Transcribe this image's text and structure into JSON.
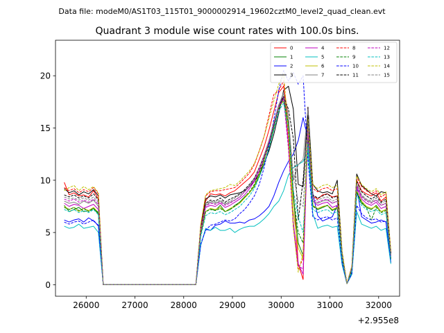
{
  "chart_data": {
    "type": "line",
    "suptitle": "Data file: modeM0/AS1T03_115T01_9000002914_19602cztM0_level2_quad_clean.evt",
    "title": "Quadrant 3 module wise count rates with 100.0s bins.",
    "xlabel": "",
    "ylabel": "",
    "x_offset_label": "+2.955e8",
    "xlim": [
      25370,
      32430
    ],
    "ylim": [
      -1.1,
      23.4
    ],
    "xticks": [
      26000,
      27000,
      28000,
      29000,
      30000,
      31000,
      32000
    ],
    "yticks": [
      0,
      5,
      10,
      15,
      20
    ],
    "legend_position": "top-right",
    "x": [
      25550,
      25650,
      25750,
      25850,
      25950,
      26050,
      26150,
      26250,
      26350,
      26450,
      26550,
      26650,
      26750,
      26850,
      26950,
      27050,
      27150,
      27250,
      27350,
      27450,
      27550,
      27650,
      27750,
      27850,
      27950,
      28050,
      28150,
      28250,
      28350,
      28450,
      28550,
      28650,
      28750,
      28850,
      28950,
      29050,
      29150,
      29250,
      29350,
      29450,
      29550,
      29650,
      29750,
      29850,
      29950,
      30050,
      30150,
      30250,
      30350,
      30450,
      30550,
      30650,
      30750,
      30850,
      30950,
      31050,
      31150,
      31250,
      31350,
      31450,
      31550,
      31650,
      31750,
      31850,
      31950,
      32050,
      32150,
      32250
    ],
    "series": [
      {
        "name": "0",
        "color": "#ff0000",
        "dash": "solid",
        "values": [
          9.8,
          8.6,
          8.8,
          8.5,
          8.6,
          8.4,
          9.0,
          8.2,
          0,
          0,
          0,
          0,
          0,
          0,
          0,
          0,
          0,
          0,
          0,
          0,
          0,
          0,
          0,
          0,
          0,
          0,
          0,
          0,
          5.4,
          8.0,
          8.7,
          8.6,
          8.7,
          8.5,
          8.8,
          9.0,
          9.4,
          9.8,
          10.2,
          10.8,
          12.0,
          13.2,
          14.8,
          16.6,
          18.4,
          19.0,
          16.0,
          9.0,
          2.0,
          0.5,
          17.0,
          8.5,
          8.2,
          8.6,
          8.7,
          8.4,
          8.5,
          3.0,
          0.1,
          1.6,
          10.0,
          9.0,
          8.7,
          8.5,
          8.8,
          8.0,
          8.4,
          3.0
        ]
      },
      {
        "name": "1",
        "color": "#008000",
        "dash": "solid",
        "values": [
          7.6,
          7.0,
          7.2,
          7.4,
          7.0,
          7.1,
          7.3,
          6.8,
          0,
          0,
          0,
          0,
          0,
          0,
          0,
          0,
          0,
          0,
          0,
          0,
          0,
          0,
          0,
          0,
          0,
          0,
          0,
          0,
          4.9,
          7.0,
          7.3,
          7.1,
          7.6,
          7.0,
          7.2,
          7.6,
          7.9,
          8.4,
          8.8,
          9.4,
          10.4,
          11.6,
          13.0,
          15.0,
          17.0,
          18.0,
          15.4,
          8.4,
          4.0,
          2.8,
          15.5,
          7.6,
          7.2,
          7.4,
          7.6,
          7.1,
          7.4,
          2.4,
          0.1,
          1.2,
          8.8,
          7.8,
          7.4,
          7.2,
          7.6,
          7.0,
          7.2,
          2.5
        ]
      },
      {
        "name": "2",
        "color": "#0000ff",
        "dash": "solid",
        "values": [
          6.2,
          6.0,
          6.2,
          6.3,
          6.0,
          6.4,
          6.1,
          5.7,
          0,
          0,
          0,
          0,
          0,
          0,
          0,
          0,
          0,
          0,
          0,
          0,
          0,
          0,
          0,
          0,
          0,
          0,
          0,
          0,
          3.8,
          5.3,
          5.2,
          5.7,
          5.8,
          6.1,
          5.9,
          5.9,
          6.0,
          5.9,
          6.2,
          6.3,
          6.6,
          7.0,
          7.5,
          8.5,
          9.8,
          10.9,
          11.8,
          12.5,
          13.8,
          16.0,
          13.9,
          8.7,
          6.6,
          6.1,
          6.3,
          6.5,
          7.6,
          2.0,
          0.1,
          1.0,
          9.3,
          6.5,
          6.2,
          5.9,
          6.0,
          6.2,
          6.0,
          2.1
        ]
      },
      {
        "name": "3",
        "color": "#000000",
        "dash": "solid",
        "values": [
          9.2,
          8.8,
          9.0,
          8.6,
          8.9,
          8.7,
          9.1,
          8.5,
          0,
          0,
          0,
          0,
          0,
          0,
          0,
          0,
          0,
          0,
          0,
          0,
          0,
          0,
          0,
          0,
          0,
          0,
          0,
          0,
          5.6,
          8.2,
          8.5,
          8.4,
          8.6,
          8.3,
          8.6,
          8.7,
          8.8,
          9.0,
          9.4,
          9.9,
          10.6,
          11.6,
          12.8,
          14.4,
          16.4,
          18.6,
          19.0,
          16.8,
          9.6,
          9.4,
          17.0,
          9.6,
          9.0,
          8.8,
          8.9,
          8.7,
          10.0,
          3.1,
          0.1,
          1.7,
          10.6,
          9.5,
          9.1,
          8.7,
          8.5,
          8.9,
          8.8,
          3.1
        ]
      },
      {
        "name": "4",
        "color": "#bf00bf",
        "dash": "solid",
        "values": [
          7.8,
          7.5,
          7.7,
          7.6,
          7.3,
          7.5,
          7.7,
          7.2,
          0,
          0,
          0,
          0,
          0,
          0,
          0,
          0,
          0,
          0,
          0,
          0,
          0,
          0,
          0,
          0,
          0,
          0,
          0,
          0,
          5.0,
          7.4,
          7.6,
          7.5,
          7.8,
          7.4,
          7.6,
          7.9,
          8.2,
          8.6,
          9.2,
          9.9,
          10.9,
          12.1,
          13.6,
          15.4,
          17.2,
          18.0,
          13.5,
          6.0,
          2.0,
          1.0,
          14.4,
          8.0,
          7.6,
          7.8,
          7.9,
          7.4,
          7.6,
          2.6,
          0.1,
          1.4,
          9.3,
          8.2,
          7.8,
          7.6,
          7.9,
          7.3,
          7.5,
          2.6
        ]
      },
      {
        "name": "5",
        "color": "#00bfbf",
        "dash": "solid",
        "values": [
          5.6,
          5.4,
          5.5,
          5.8,
          5.4,
          5.5,
          5.6,
          5.0,
          0,
          0,
          0,
          0,
          0,
          0,
          0,
          0,
          0,
          0,
          0,
          0,
          0,
          0,
          0,
          0,
          0,
          0,
          0,
          0,
          3.8,
          5.4,
          5.2,
          5.5,
          5.2,
          5.2,
          5.4,
          5.0,
          5.3,
          5.5,
          5.6,
          5.6,
          5.9,
          6.3,
          6.8,
          7.5,
          8.0,
          9.0,
          10.5,
          11.2,
          11.5,
          11.8,
          12.8,
          6.8,
          5.4,
          5.6,
          5.7,
          5.5,
          5.6,
          1.9,
          0.1,
          1.0,
          7.0,
          5.8,
          5.6,
          5.4,
          5.6,
          5.2,
          5.4,
          2.0
        ]
      },
      {
        "name": "6",
        "color": "#bfbf00",
        "dash": "solid",
        "values": [
          7.5,
          7.2,
          7.4,
          7.0,
          7.3,
          7.1,
          7.4,
          6.9,
          0,
          0,
          0,
          0,
          0,
          0,
          0,
          0,
          0,
          0,
          0,
          0,
          0,
          0,
          0,
          0,
          0,
          0,
          0,
          0,
          4.8,
          7.0,
          7.3,
          7.2,
          7.4,
          7.0,
          7.3,
          7.5,
          7.8,
          8.3,
          8.8,
          9.5,
          10.6,
          11.9,
          13.4,
          15.2,
          17.0,
          17.6,
          14.5,
          7.0,
          3.5,
          2.5,
          16.0,
          7.6,
          7.3,
          7.5,
          7.6,
          7.2,
          7.4,
          2.5,
          0.1,
          1.3,
          9.0,
          8.0,
          7.5,
          7.3,
          7.5,
          7.0,
          7.2,
          2.5
        ]
      },
      {
        "name": "7",
        "color": "#808080",
        "dash": "solid",
        "values": [
          8.0,
          7.8,
          7.9,
          7.7,
          8.0,
          7.8,
          8.1,
          7.5,
          0,
          0,
          0,
          0,
          0,
          0,
          0,
          0,
          0,
          0,
          0,
          0,
          0,
          0,
          0,
          0,
          0,
          0,
          0,
          0,
          5.2,
          7.6,
          7.9,
          7.8,
          8.0,
          7.7,
          7.9,
          8.1,
          8.4,
          8.9,
          9.4,
          10.1,
          11.2,
          12.4,
          13.8,
          15.5,
          17.2,
          18.4,
          16.0,
          10.0,
          11.5,
          12.0,
          16.8,
          8.0,
          7.8,
          8.0,
          8.1,
          7.8,
          8.0,
          2.7,
          0.1,
          1.5,
          9.6,
          8.5,
          8.1,
          7.9,
          8.1,
          7.6,
          7.8,
          2.8
        ]
      },
      {
        "name": "8",
        "color": "#ff0000",
        "dash": "dashed",
        "values": [
          9.3,
          9.0,
          9.2,
          8.8,
          9.1,
          8.9,
          9.3,
          8.7,
          0,
          0,
          0,
          0,
          0,
          0,
          0,
          0,
          0,
          0,
          0,
          0,
          0,
          0,
          0,
          0,
          0,
          0,
          0,
          0,
          5.7,
          8.5,
          8.9,
          9.0,
          9.0,
          9.1,
          9.2,
          9.3,
          9.7,
          10.2,
          10.7,
          11.5,
          12.8,
          14.2,
          16.2,
          18.2,
          18.6,
          19.5,
          14.0,
          5.5,
          1.5,
          2.5,
          15.2,
          9.2,
          8.9,
          9.2,
          9.3,
          9.0,
          9.2,
          3.1,
          0.1,
          1.8,
          10.3,
          9.4,
          9.0,
          8.7,
          9.0,
          8.4,
          8.7,
          3.1
        ]
      },
      {
        "name": "9",
        "color": "#008000",
        "dash": "dashed",
        "values": [
          7.4,
          7.2,
          7.4,
          7.1,
          7.3,
          7.0,
          7.3,
          6.9,
          0,
          0,
          0,
          0,
          0,
          0,
          0,
          0,
          0,
          0,
          0,
          0,
          0,
          0,
          0,
          0,
          0,
          0,
          0,
          0,
          4.8,
          7.0,
          7.2,
          7.1,
          7.3,
          7.0,
          7.2,
          7.5,
          7.9,
          8.4,
          8.9,
          9.6,
          10.7,
          12.0,
          13.5,
          15.2,
          16.8,
          17.8,
          15.0,
          8.5,
          5.0,
          4.0,
          14.0,
          7.5,
          7.2,
          7.4,
          7.6,
          7.1,
          7.3,
          2.4,
          0.1,
          1.3,
          8.9,
          7.9,
          7.4,
          6.2,
          7.4,
          6.9,
          7.1,
          2.4
        ]
      },
      {
        "name": "10",
        "color": "#0000ff",
        "dash": "dashed",
        "values": [
          6.0,
          5.8,
          6.0,
          6.1,
          5.8,
          6.0,
          6.2,
          5.6,
          0,
          0,
          0,
          0,
          0,
          0,
          0,
          0,
          0,
          0,
          0,
          0,
          0,
          0,
          0,
          0,
          0,
          0,
          0,
          0,
          3.9,
          5.2,
          5.7,
          5.8,
          6.0,
          6.2,
          6.1,
          6.3,
          6.8,
          7.2,
          7.8,
          8.5,
          9.6,
          11.2,
          13.3,
          15.8,
          18.6,
          20.5,
          19.5,
          20.3,
          19.2,
          20.0,
          12.0,
          6.5,
          6.2,
          6.4,
          6.5,
          6.2,
          6.4,
          2.1,
          0.1,
          1.1,
          7.6,
          6.8,
          6.4,
          6.2,
          6.3,
          6.0,
          6.1,
          2.2
        ]
      },
      {
        "name": "11",
        "color": "#000000",
        "dash": "dashed",
        "values": [
          8.6,
          8.4,
          8.6,
          8.3,
          8.5,
          8.3,
          8.7,
          8.1,
          0,
          0,
          0,
          0,
          0,
          0,
          0,
          0,
          0,
          0,
          0,
          0,
          0,
          0,
          0,
          0,
          0,
          0,
          0,
          0,
          5.4,
          7.8,
          8.1,
          8.0,
          8.3,
          7.9,
          8.2,
          8.4,
          8.7,
          9.1,
          9.6,
          10.2,
          11.2,
          12.3,
          13.6,
          15.3,
          17.0,
          18.0,
          16.8,
          14.0,
          6.2,
          10.0,
          16.2,
          8.6,
          8.3,
          8.5,
          8.7,
          8.3,
          8.5,
          2.9,
          0.1,
          1.6,
          9.9,
          8.9,
          8.5,
          8.2,
          8.5,
          7.9,
          8.2,
          2.9
        ]
      },
      {
        "name": "12",
        "color": "#bf00bf",
        "dash": "dashed",
        "values": [
          8.2,
          8.0,
          8.2,
          7.9,
          8.1,
          7.9,
          8.2,
          7.7,
          0,
          0,
          0,
          0,
          0,
          0,
          0,
          0,
          0,
          0,
          0,
          0,
          0,
          0,
          0,
          0,
          0,
          0,
          0,
          0,
          5.1,
          7.5,
          7.8,
          7.7,
          7.9,
          7.6,
          7.8,
          8.1,
          8.4,
          8.9,
          9.4,
          10.0,
          11.0,
          12.2,
          13.6,
          15.3,
          17.0,
          17.8,
          13.0,
          5.5,
          1.8,
          1.5,
          14.8,
          8.2,
          7.9,
          8.1,
          8.2,
          7.8,
          8.0,
          2.7,
          0.1,
          1.5,
          9.5,
          8.4,
          8.0,
          7.8,
          8.1,
          7.6,
          7.8,
          2.7
        ]
      },
      {
        "name": "13",
        "color": "#00bfbf",
        "dash": "dashed",
        "values": [
          7.2,
          7.0,
          7.2,
          6.9,
          7.1,
          6.9,
          7.2,
          6.7,
          0,
          0,
          0,
          0,
          0,
          0,
          0,
          0,
          0,
          0,
          0,
          0,
          0,
          0,
          0,
          0,
          0,
          0,
          0,
          0,
          4.6,
          6.6,
          6.9,
          6.8,
          7.0,
          6.7,
          6.9,
          7.2,
          7.5,
          8.0,
          8.5,
          9.2,
          10.3,
          11.5,
          13.0,
          14.8,
          16.6,
          17.4,
          14.8,
          9.0,
          6.5,
          5.0,
          13.5,
          7.2,
          6.9,
          7.1,
          7.2,
          6.8,
          7.0,
          2.4,
          0.1,
          1.3,
          8.6,
          7.6,
          7.2,
          7.0,
          7.2,
          6.7,
          6.9,
          2.4
        ]
      },
      {
        "name": "14",
        "color": "#bfbf00",
        "dash": "dashed",
        "values": [
          9.0,
          9.3,
          9.5,
          9.0,
          9.4,
          9.1,
          9.4,
          8.8,
          0,
          0,
          0,
          0,
          0,
          0,
          0,
          0,
          0,
          0,
          0,
          0,
          0,
          0,
          0,
          0,
          0,
          0,
          0,
          0,
          5.8,
          8.6,
          9.0,
          9.1,
          9.2,
          9.3,
          9.6,
          9.5,
          9.9,
          10.4,
          10.9,
          11.6,
          12.8,
          14.2,
          15.9,
          17.6,
          19.2,
          20.2,
          14.5,
          5.5,
          1.2,
          3.0,
          15.8,
          9.6,
          9.2,
          9.5,
          9.6,
          9.3,
          9.5,
          3.2,
          0.1,
          1.8,
          10.4,
          9.6,
          9.2,
          8.9,
          9.2,
          8.6,
          8.9,
          3.2
        ]
      },
      {
        "name": "15",
        "color": "#808080",
        "dash": "dashed",
        "values": [
          8.4,
          8.2,
          8.3,
          8.1,
          8.3,
          8.1,
          8.4,
          7.9,
          0,
          0,
          0,
          0,
          0,
          0,
          0,
          0,
          0,
          0,
          0,
          0,
          0,
          0,
          0,
          0,
          0,
          0,
          0,
          0,
          5.3,
          7.7,
          8.0,
          7.9,
          8.1,
          7.8,
          8.0,
          8.3,
          8.6,
          9.0,
          9.5,
          10.2,
          11.2,
          12.4,
          13.8,
          15.5,
          17.2,
          18.2,
          15.8,
          10.5,
          8.0,
          7.5,
          15.6,
          8.4,
          8.1,
          8.3,
          8.4,
          8.0,
          8.2,
          2.8,
          0.1,
          1.6,
          9.7,
          8.6,
          8.2,
          8.0,
          8.3,
          7.8,
          8.0,
          2.8
        ]
      }
    ]
  }
}
